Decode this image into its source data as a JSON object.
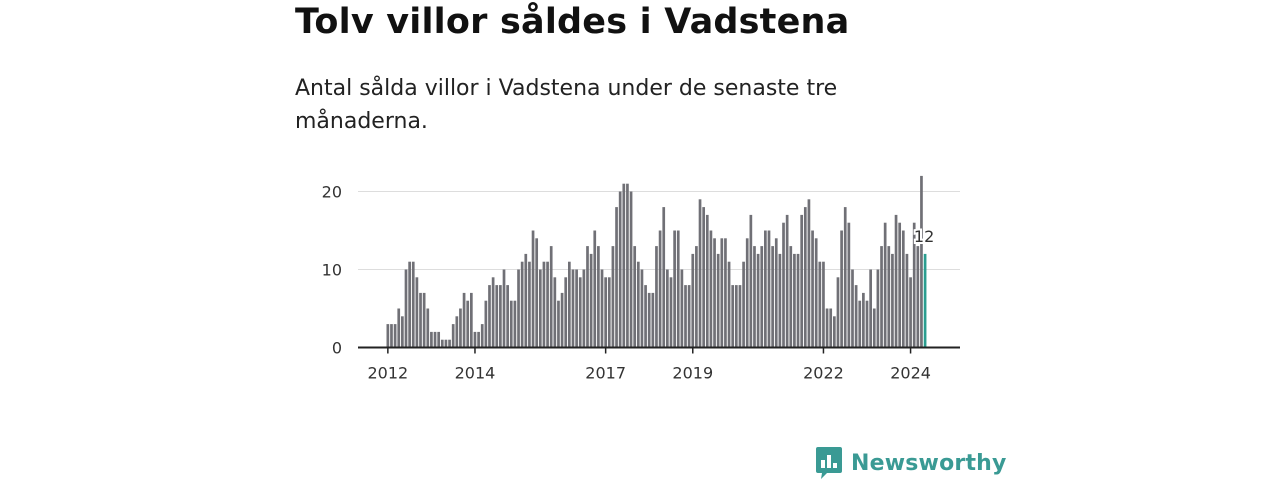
{
  "header": {
    "title": "Tolv villor såldes i Vadstena",
    "subtitle": "Antal sålda villor i Vadstena under de senaste tre månaderna."
  },
  "colors": {
    "bar": "#707076",
    "highlight": "#2a9d8f",
    "grid": "#dddddd",
    "axis": "#222222",
    "brand": "#3a9a94"
  },
  "brand": {
    "name": "Newsworthy",
    "icon": "chart-bubble-icon"
  },
  "chart_data": {
    "type": "bar",
    "title": "Tolv villor såldes i Vadstena",
    "xlabel": "",
    "ylabel": "",
    "ylim": [
      0,
      24
    ],
    "yticks": [
      0,
      10,
      20
    ],
    "grid": true,
    "x_start": "2012-01",
    "xticks": [
      {
        "label": "2012",
        "index": 0
      },
      {
        "label": "2014",
        "index": 24
      },
      {
        "label": "2017",
        "index": 60
      },
      {
        "label": "2019",
        "index": 84
      },
      {
        "label": "2022",
        "index": 120
      },
      {
        "label": "2024",
        "index": 144
      }
    ],
    "values": [
      3,
      3,
      3,
      5,
      4,
      10,
      11,
      11,
      9,
      7,
      7,
      5,
      2,
      2,
      2,
      1,
      1,
      1,
      3,
      4,
      5,
      7,
      6,
      7,
      2,
      2,
      3,
      6,
      8,
      9,
      8,
      8,
      10,
      8,
      6,
      6,
      10,
      11,
      12,
      11,
      15,
      14,
      10,
      11,
      11,
      13,
      9,
      6,
      7,
      9,
      11,
      10,
      10,
      9,
      10,
      13,
      12,
      15,
      13,
      10,
      9,
      9,
      13,
      18,
      20,
      21,
      21,
      20,
      13,
      11,
      10,
      8,
      7,
      7,
      13,
      15,
      18,
      10,
      9,
      15,
      15,
      10,
      8,
      8,
      12,
      13,
      19,
      18,
      17,
      15,
      14,
      12,
      14,
      14,
      11,
      8,
      8,
      8,
      11,
      14,
      17,
      13,
      12,
      13,
      15,
      15,
      13,
      14,
      12,
      16,
      17,
      13,
      12,
      12,
      17,
      18,
      19,
      15,
      14,
      11,
      11,
      5,
      5,
      4,
      9,
      15,
      18,
      16,
      10,
      8,
      6,
      7,
      6,
      10,
      5,
      10,
      13,
      16,
      13,
      12,
      17,
      16,
      15,
      12,
      9,
      16,
      13,
      22,
      12
    ],
    "highlight_index": 148,
    "annotation": "12"
  }
}
